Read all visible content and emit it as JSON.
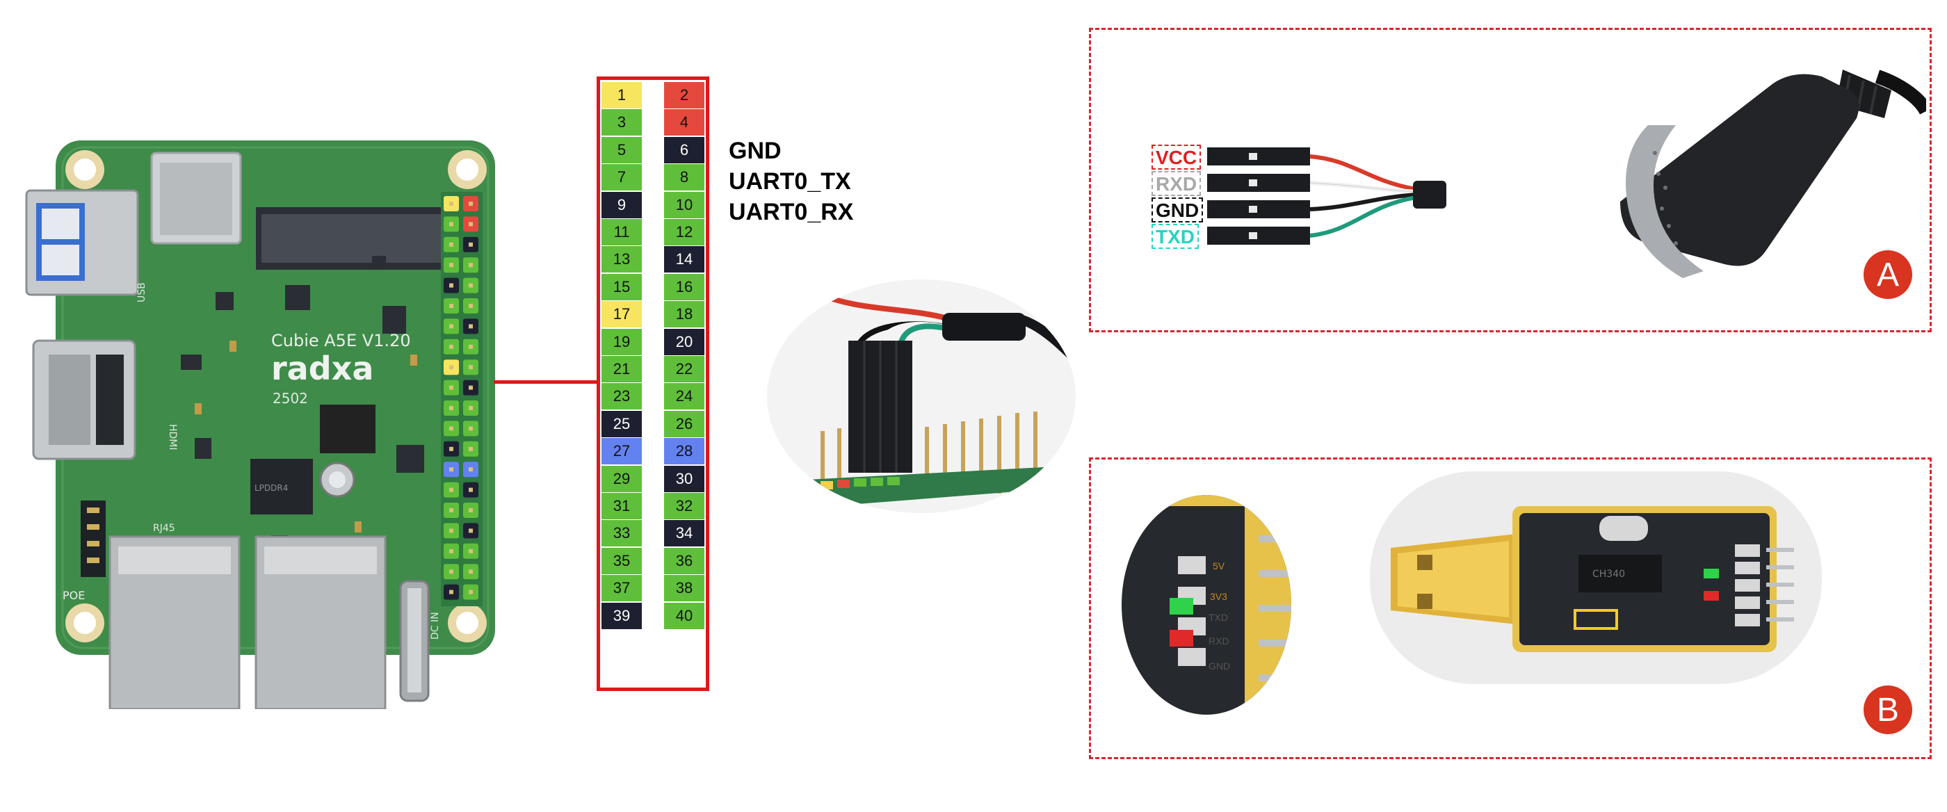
{
  "board": {
    "model_text": "Cubie A5E V1.20",
    "brand_text": "radxa",
    "date_code": "2502",
    "usb_label": "USB",
    "hdmi_label": "HDMI",
    "poe_label": "POE",
    "rj45_label": "RJ45",
    "dc_label": "DC IN",
    "chip1_text": "LPDDR4",
    "chip2_text": "RJ45"
  },
  "header_pins": [
    {
      "left": "1",
      "left_color": "#f7e560",
      "right": "2",
      "right_color": "#e5493d"
    },
    {
      "left": "3",
      "left_color": "#5fbf3a",
      "right": "4",
      "right_color": "#e5493d"
    },
    {
      "left": "5",
      "left_color": "#5fbf3a",
      "right": "6",
      "right_color": "#1d2030"
    },
    {
      "left": "7",
      "left_color": "#5fbf3a",
      "right": "8",
      "right_color": "#5fbf3a"
    },
    {
      "left": "9",
      "left_color": "#1d2030",
      "right": "10",
      "right_color": "#5fbf3a"
    },
    {
      "left": "11",
      "left_color": "#5fbf3a",
      "right": "12",
      "right_color": "#5fbf3a"
    },
    {
      "left": "13",
      "left_color": "#5fbf3a",
      "right": "14",
      "right_color": "#1d2030"
    },
    {
      "left": "15",
      "left_color": "#5fbf3a",
      "right": "16",
      "right_color": "#5fbf3a"
    },
    {
      "left": "17",
      "left_color": "#f7e560",
      "right": "18",
      "right_color": "#5fbf3a"
    },
    {
      "left": "19",
      "left_color": "#5fbf3a",
      "right": "20",
      "right_color": "#1d2030"
    },
    {
      "left": "21",
      "left_color": "#5fbf3a",
      "right": "22",
      "right_color": "#5fbf3a"
    },
    {
      "left": "23",
      "left_color": "#5fbf3a",
      "right": "24",
      "right_color": "#5fbf3a"
    },
    {
      "left": "25",
      "left_color": "#1d2030",
      "right": "26",
      "right_color": "#5fbf3a"
    },
    {
      "left": "27",
      "left_color": "#6382f0",
      "right": "28",
      "right_color": "#6382f0"
    },
    {
      "left": "29",
      "left_color": "#5fbf3a",
      "right": "30",
      "right_color": "#1d2030"
    },
    {
      "left": "31",
      "left_color": "#5fbf3a",
      "right": "32",
      "right_color": "#5fbf3a"
    },
    {
      "left": "33",
      "left_color": "#5fbf3a",
      "right": "34",
      "right_color": "#1d2030"
    },
    {
      "left": "35",
      "left_color": "#5fbf3a",
      "right": "36",
      "right_color": "#5fbf3a"
    },
    {
      "left": "37",
      "left_color": "#5fbf3a",
      "right": "38",
      "right_color": "#5fbf3a"
    },
    {
      "left": "39",
      "left_color": "#1d2030",
      "right": "40",
      "right_color": "#5fbf3a"
    }
  ],
  "signal_labels": [
    {
      "text": "GND",
      "color": "#111111"
    },
    {
      "text": "UART0_TX",
      "color": "#a8a8a8"
    },
    {
      "text": "UART0_RX",
      "color": "#26d4c0"
    }
  ],
  "adapter_a": {
    "badge": "A",
    "wires": [
      {
        "text": "VCC",
        "color": "#e02020"
      },
      {
        "text": "RXD",
        "color": "#a8a8a8"
      },
      {
        "text": "GND",
        "color": "#111111"
      },
      {
        "text": "TXD",
        "color": "#26d4c0"
      }
    ]
  },
  "adapter_b": {
    "badge": "B",
    "pin_labels": [
      "5V",
      "3V3",
      "TXD",
      "RXD",
      "GND"
    ],
    "chip_text": "CH340"
  },
  "colors": {
    "frame": "#d9262e",
    "pcb_green": "#3f8b4a",
    "badge": "#d8341f"
  }
}
